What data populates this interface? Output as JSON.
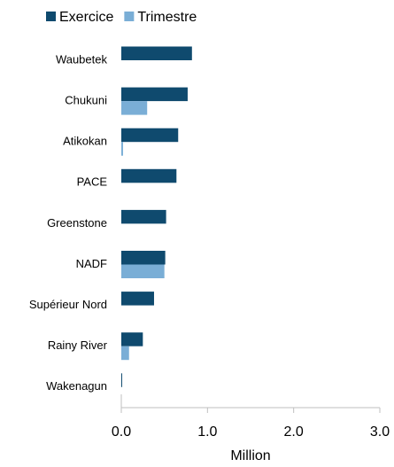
{
  "chart_data": {
    "type": "bar",
    "orientation": "horizontal",
    "categories": [
      "Waubetek",
      "Chukuni",
      "Atikokan",
      "PACE",
      "Greenstone",
      "NADF",
      "Supérieur Nord",
      "Rainy River",
      "Wakenagun"
    ],
    "series": [
      {
        "name": "Exercice",
        "color": "#0f4a6e",
        "values": [
          0.82,
          0.77,
          0.66,
          0.64,
          0.52,
          0.51,
          0.38,
          0.25,
          0.01
        ]
      },
      {
        "name": "Trimestre",
        "color": "#7aaed6",
        "values": [
          0,
          0.3,
          0.02,
          0,
          0,
          0.5,
          0,
          0.09,
          0
        ]
      }
    ],
    "xlim": [
      0,
      3
    ],
    "xticks": [
      {
        "value": 0,
        "label": "0.0"
      },
      {
        "value": 1,
        "label": "1.0"
      },
      {
        "value": 2,
        "label": "2.0"
      },
      {
        "value": 3,
        "label": "3.0"
      }
    ],
    "x_label": "Million"
  }
}
